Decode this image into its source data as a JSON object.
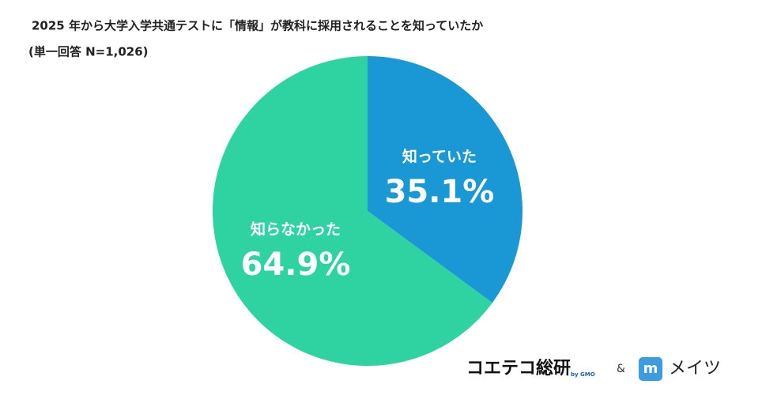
{
  "chart_data": {
    "type": "pie",
    "title": "2025 年から大学入学共通テストに「情報」が教科に採用されることを知っていたか",
    "subtitle": "(単一回答 N=1,026)",
    "categories": [
      "知っていた",
      "知らなかった"
    ],
    "values": [
      35.1,
      64.9
    ],
    "value_labels": [
      "35.1%",
      "64.9%"
    ],
    "colors": [
      "#1a98d5",
      "#2fd3a2"
    ]
  },
  "footer": {
    "brand": "コエテコ総研",
    "by": "by GMO",
    "and": "&",
    "icon": "m",
    "partner": "メイツ"
  }
}
